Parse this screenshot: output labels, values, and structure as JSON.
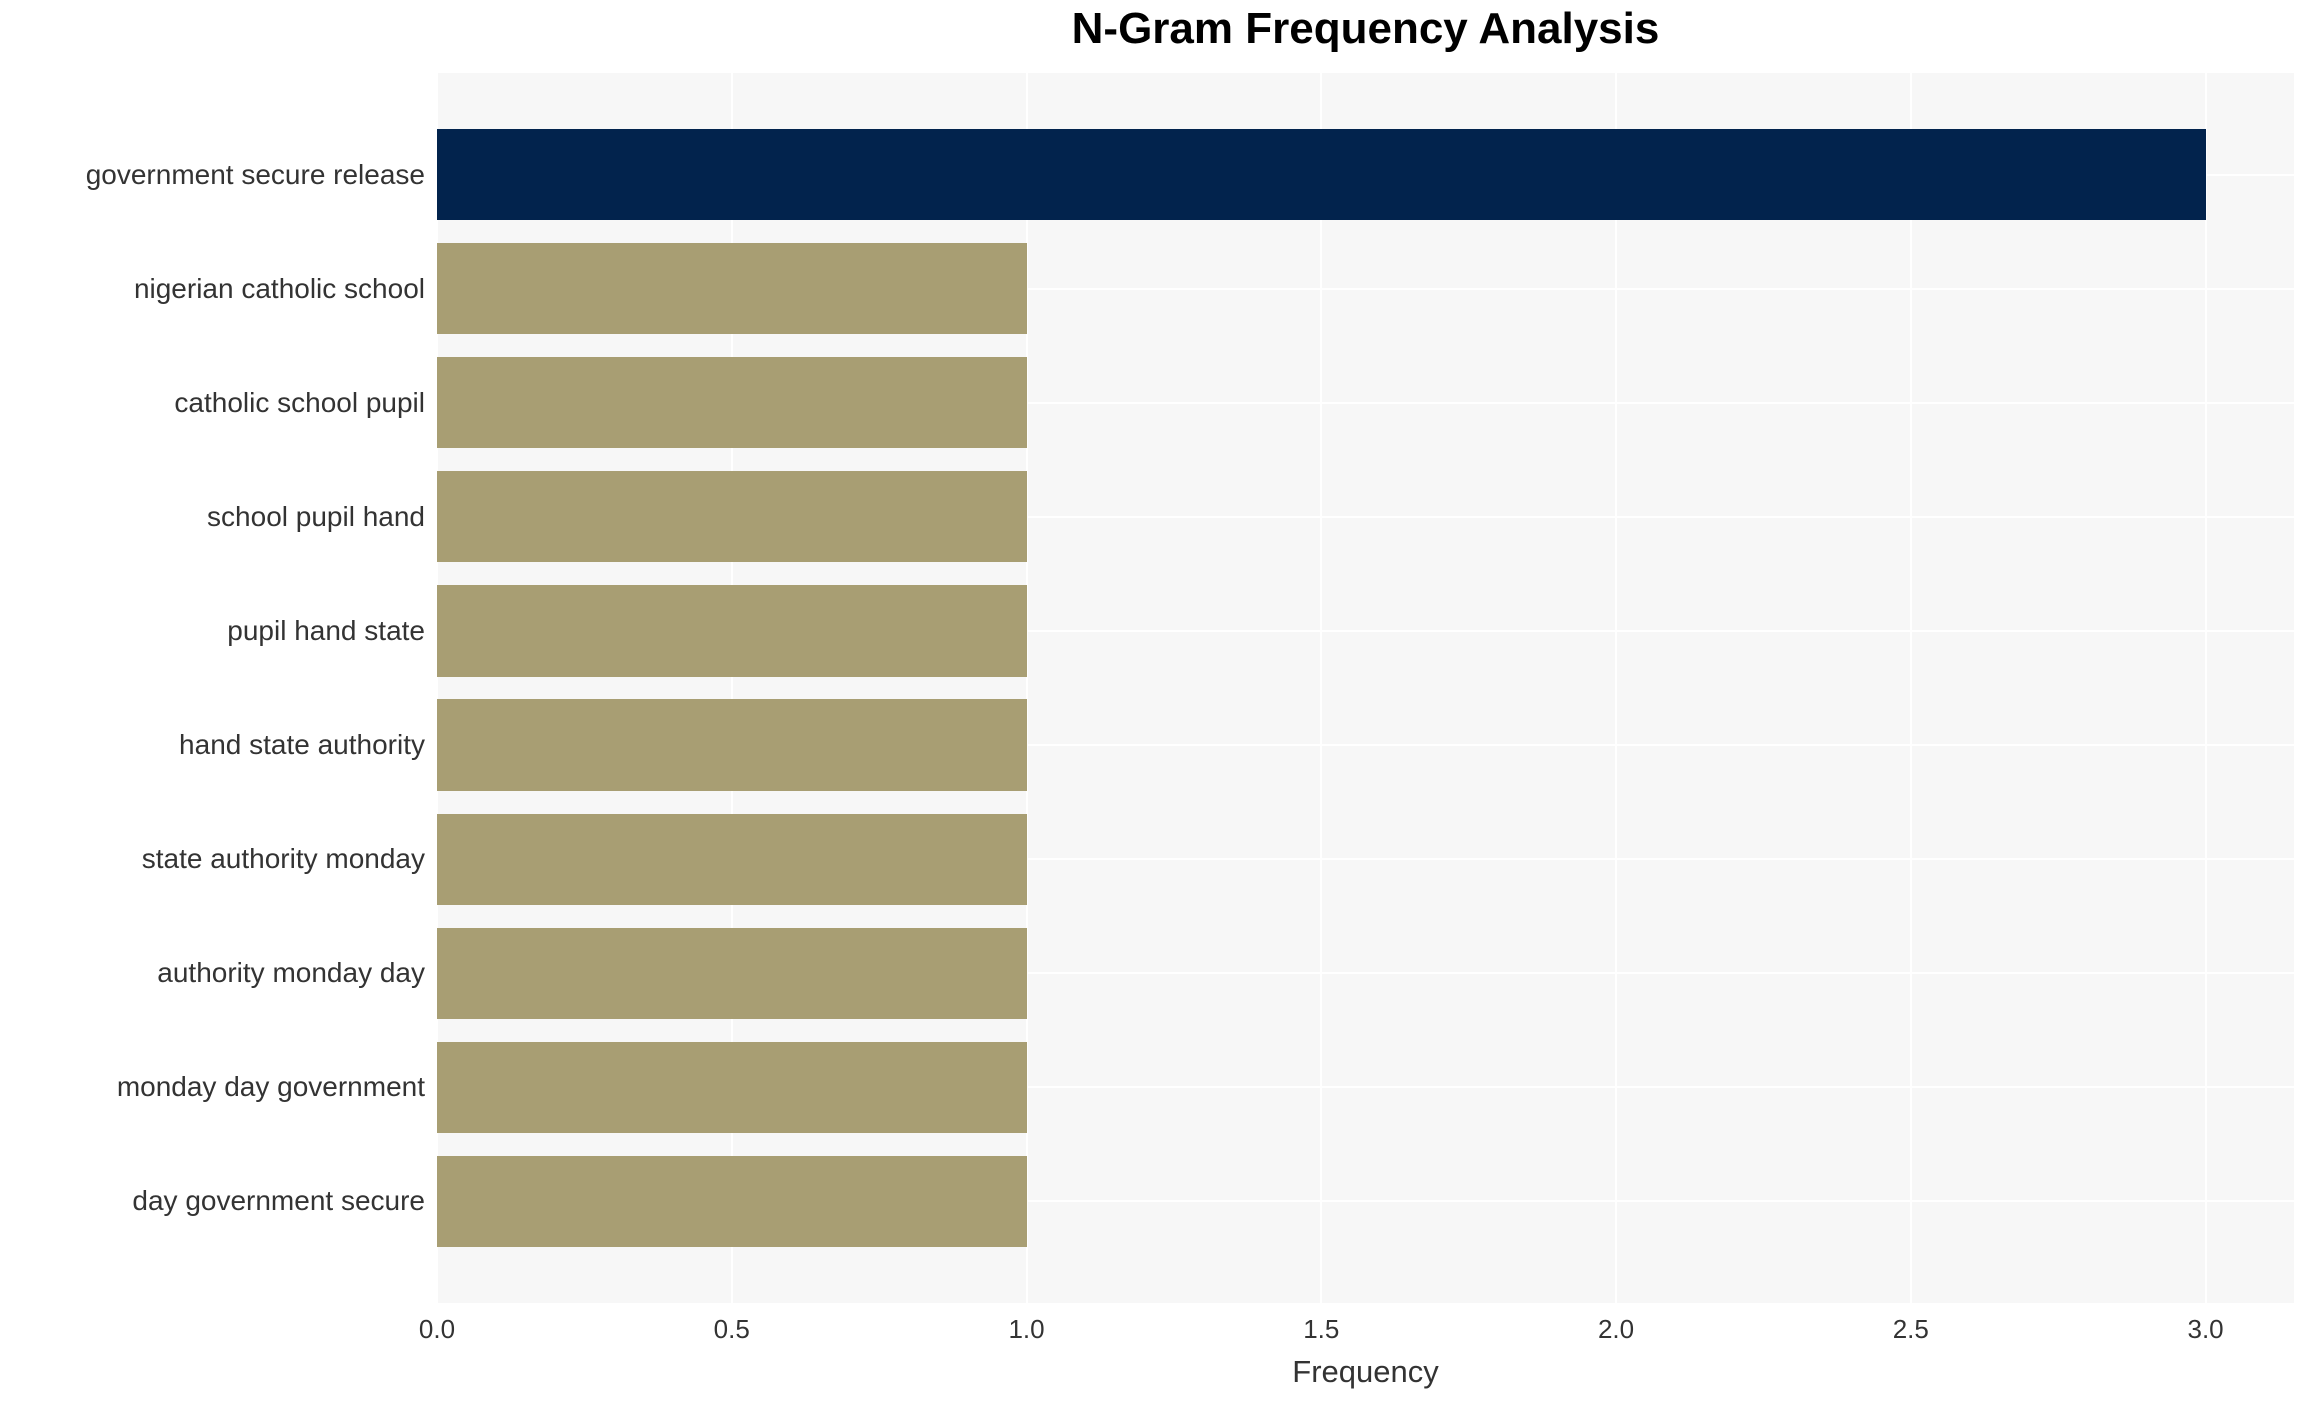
{
  "figure": {
    "background": "#ffffff"
  },
  "chart_data": {
    "type": "bar",
    "orientation": "horizontal",
    "title": "N-Gram Frequency Analysis",
    "xlabel": "Frequency",
    "ylabel": "",
    "categories": [
      "government secure release",
      "nigerian catholic school",
      "catholic school pupil",
      "school pupil hand",
      "pupil hand state",
      "hand state authority",
      "state authority monday",
      "authority monday day",
      "monday day government",
      "day government secure"
    ],
    "values": [
      3,
      1,
      1,
      1,
      1,
      1,
      1,
      1,
      1,
      1
    ],
    "bar_colors": [
      "#02234d",
      "#a89e73",
      "#a89e73",
      "#a89e73",
      "#a89e73",
      "#a89e73",
      "#a89e73",
      "#a89e73",
      "#a89e73",
      "#a89e73"
    ],
    "xlim": [
      0,
      3.15
    ],
    "xticks": {
      "values": [
        0,
        0.5,
        1.0,
        1.5,
        2.0,
        2.5,
        3.0
      ],
      "labels": [
        "0.0",
        "0.5",
        "1.0",
        "1.5",
        "2.0",
        "2.5",
        "3.0"
      ]
    },
    "grid": true,
    "legend": false,
    "colors": {
      "highlight_bar": "#02234d",
      "default_bar": "#a89e73",
      "plot_background": "#f7f7f7",
      "grid_line": "#ffffff",
      "tick_text": "#333333",
      "title_text": "#000000"
    }
  }
}
